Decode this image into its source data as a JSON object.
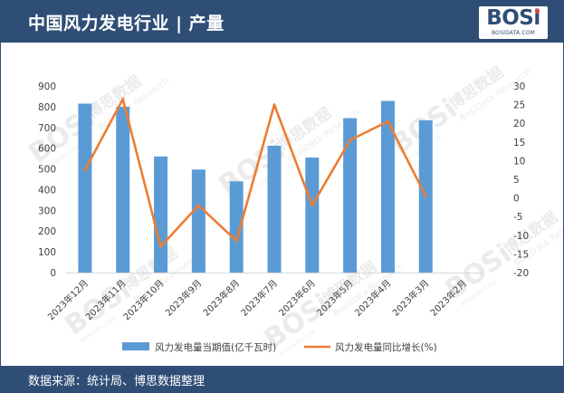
{
  "header": {
    "title": "中国风力发电行业 | 产量"
  },
  "logo": {
    "main": "BOSi",
    "sub": "BOSIDATA.COM"
  },
  "watermark": {
    "brand": "BOSi",
    "cn": "博思数据",
    "en": "BosiData Research",
    "site": "BOSIDATA.COM"
  },
  "footer": {
    "source": "数据来源：统计局、博思数据整理"
  },
  "colors": {
    "header_bg": "#2f4e76",
    "bar": "#5b9bd5",
    "line": "#ed7d31"
  },
  "chart_data": {
    "type": "bar+line",
    "categories": [
      "2023年12月",
      "2023年11月",
      "2023年10月",
      "2023年9月",
      "2023年8月",
      "2023年7月",
      "2023年6月",
      "2023年5月",
      "2023年4月",
      "2023年3月",
      "2023年2月"
    ],
    "series": [
      {
        "name": "风力发电量当期值(亿千瓦时)",
        "type": "bar",
        "axis": "left",
        "values": [
          815,
          800,
          560,
          497,
          440,
          612,
          555,
          745,
          828,
          735,
          null
        ]
      },
      {
        "name": "风力发电量同比增长(%)",
        "type": "line",
        "axis": "right",
        "values": [
          7.5,
          26.5,
          -13,
          -2,
          -11.5,
          25,
          -2,
          15.5,
          20.5,
          0.5,
          null
        ]
      }
    ],
    "y_left": {
      "min": 0,
      "max": 900,
      "step": 100
    },
    "y_right": {
      "min": -20,
      "max": 30,
      "step": 5
    },
    "legend_position": "bottom",
    "grid": false
  }
}
